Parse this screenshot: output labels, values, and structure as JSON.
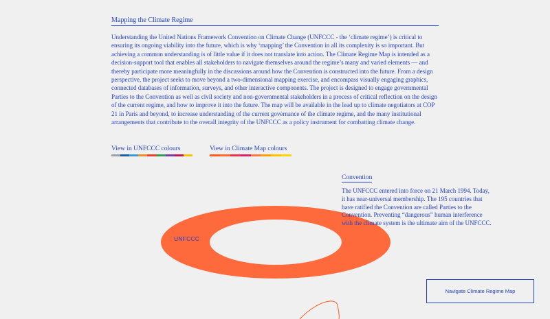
{
  "header": {
    "title": "Mapping the Climate Regime"
  },
  "intro": {
    "text": "Understanding the United Nations Framework Convention on Climate Change (UNFCCC - the ‘climate regime’) is critical to ensuring its ongoing viability into the future, which is why ‘mapping’ the Convention in all its complexity is so important. But achieving a common understanding is of little value if it does not translate into action. The Climate Regime Map is intended as a decision-support tool that enables all stakeholders to navigate themselves around the regime’s many and varied elements — and thereby participate more meaningfully in the discussions around how the Convention is constructed into the future. From a design perspective, the project seeks to move beyond a two-dimensional mapping exercise, and encompass visually engaging graphics, connected databases of information, surveys, and other interactive components. The project is designed to engage governmental Parties to the Convention as well as civil society and non-governmental stakeholders in a process of critical reflection on the design of the current regime, and how to improve it into the future. The map will be available in the lead up to climate negotiators at COP 21 in Paris and beyond, to increase understanding of the current governance of the climate regime, and the many institutional arrangements that contribute to the overall integrity of the UNFCCC as a policy instrument for combatting climate change."
  },
  "colour_links": [
    {
      "label": "View in UNFCCC colours",
      "swatches": [
        "#9aa0a6",
        "#1f5fb0",
        "#3a9bd6",
        "#f08a24",
        "#e8452c",
        "#2e9e57",
        "#7b3aa8",
        "#c2185b",
        "#f6c400"
      ]
    },
    {
      "label": "View in Climate Map colours",
      "swatches": [
        "#ff5a1f",
        "#ff6a2a",
        "#f0304a",
        "#d4246e",
        "#ff7a3a",
        "#ffa000",
        "#ffc400",
        "#ffd600"
      ]
    }
  ],
  "map": {
    "ring_label": "UNFCCC",
    "ring_color": "#ff6a3d",
    "curve_color": "#ff5a1f"
  },
  "convention": {
    "title": "Convention",
    "text": "The UNFCCC entered into force on 21 March 1994. Today, it has near-universal membership. The 195 countries that have ratified the Convention are called Parties to the Convention.  Preventing “dangerous” human interference with the climate system is the ultimate aim of the UNFCCC."
  },
  "nav": {
    "button_label": "Navigate Climate Regime Map"
  },
  "colors": {
    "background": "#f0f0f0",
    "text": "#2340c8"
  }
}
